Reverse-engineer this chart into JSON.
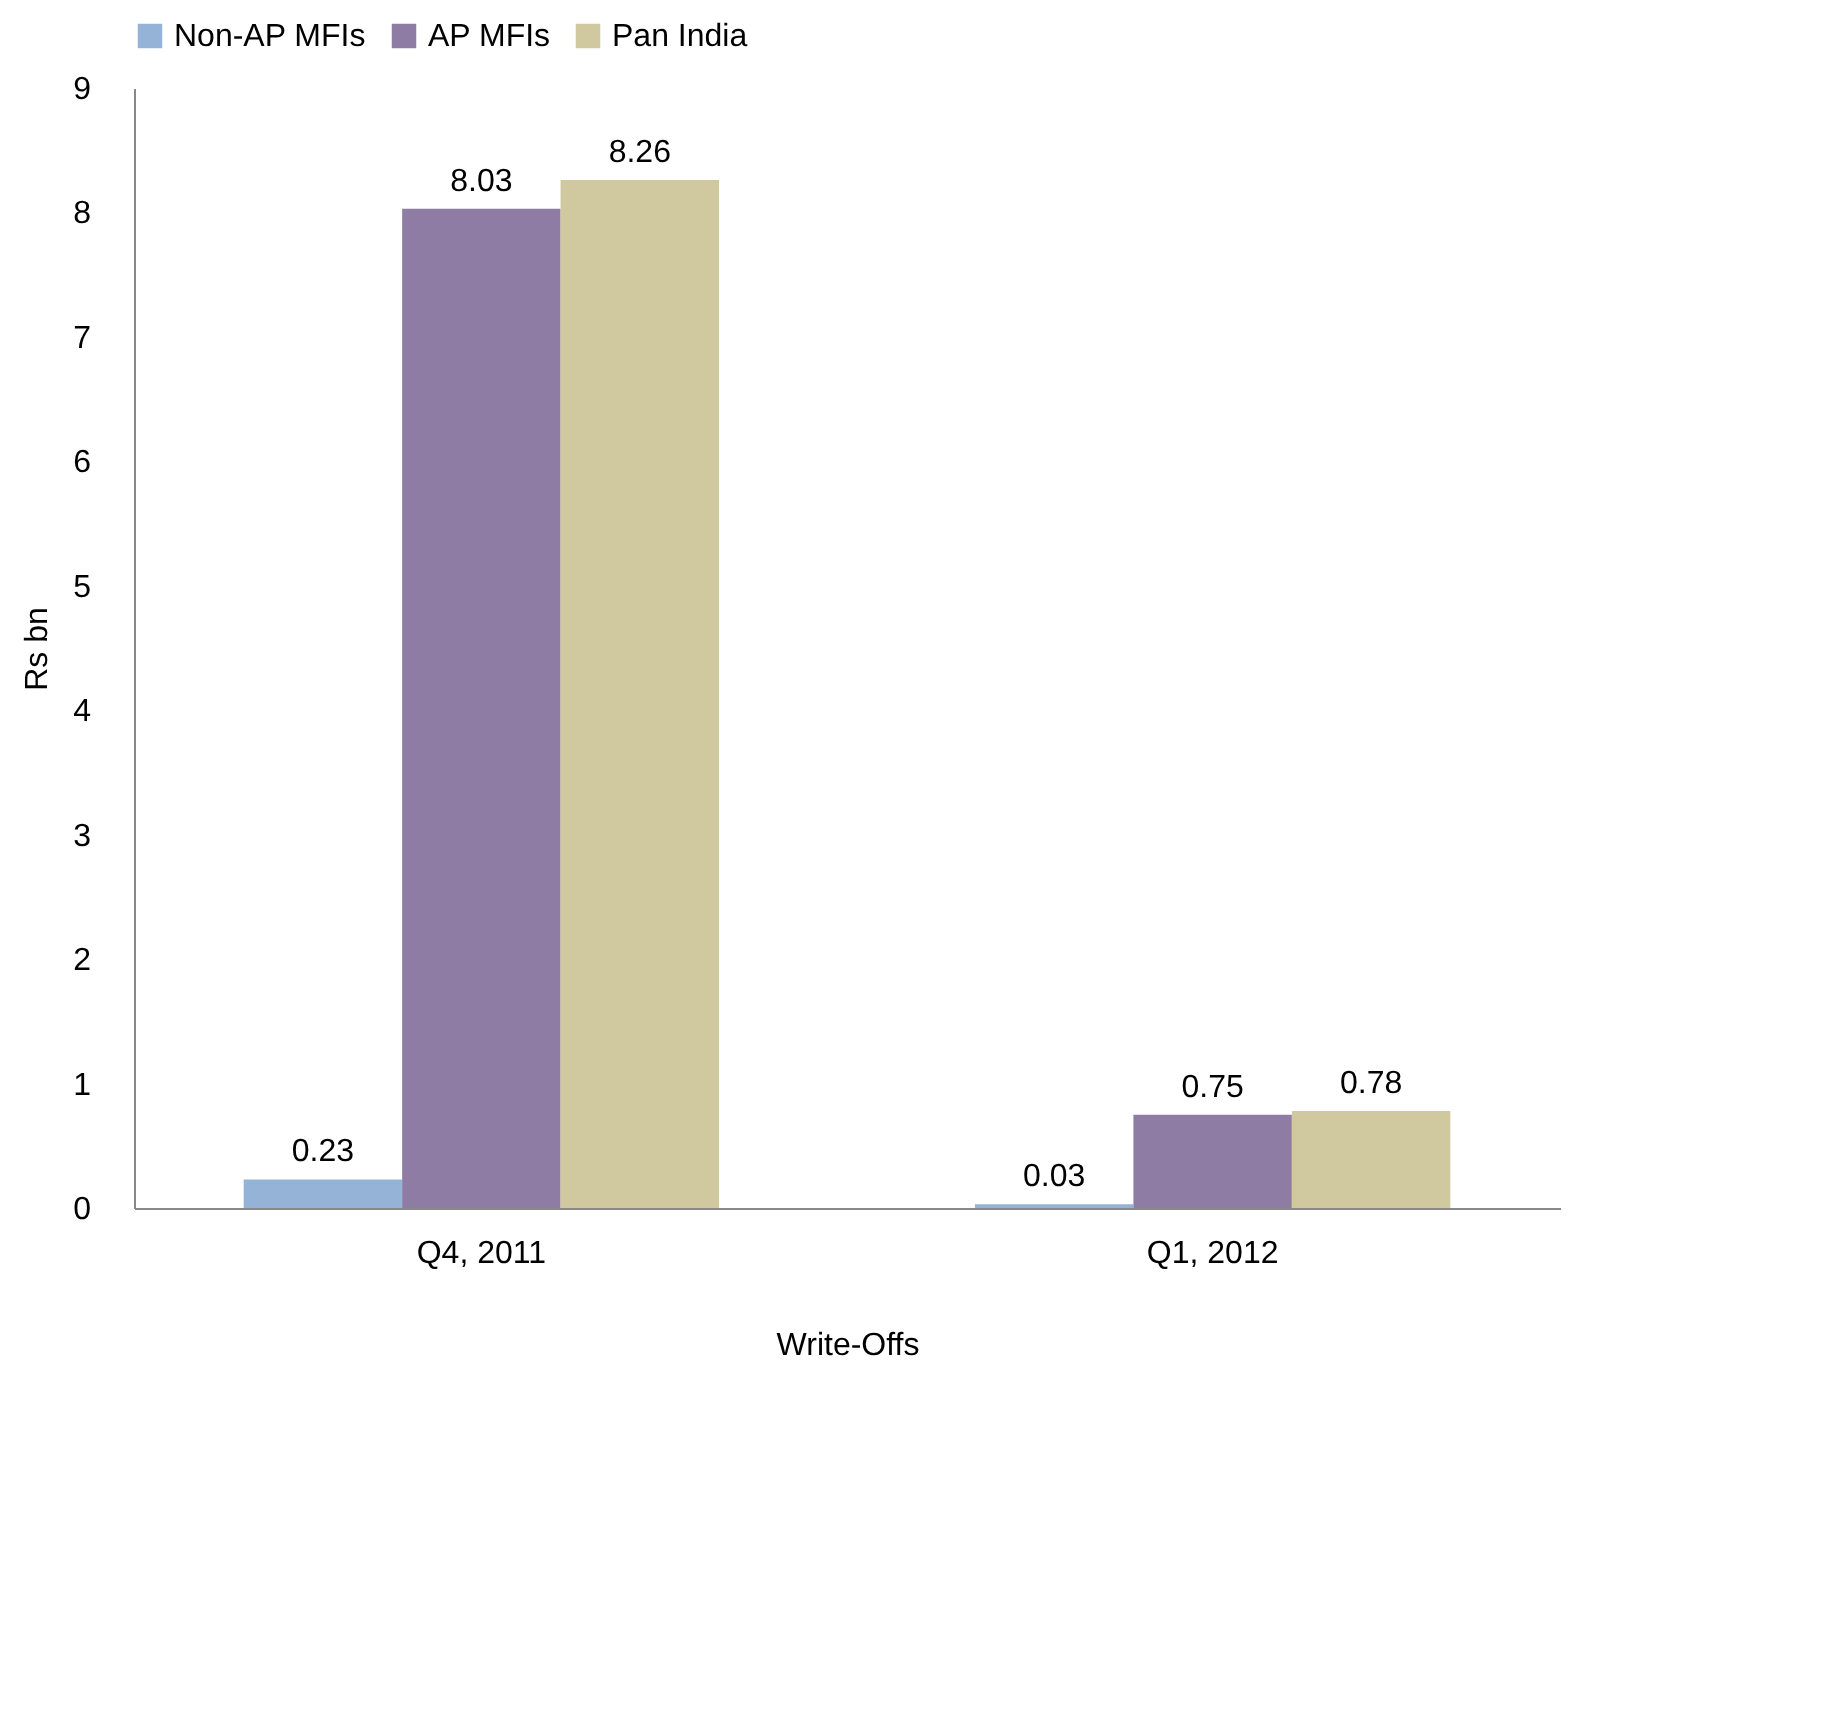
{
  "chart_data": {
    "type": "bar",
    "xlabel": "Write-Offs",
    "ylabel": "Rs bn",
    "categories": [
      "Q4, 2011",
      "Q1, 2012"
    ],
    "series": [
      {
        "name": "Non-AP MFIs",
        "color": "#95b3d7",
        "values": [
          0.23,
          0.03
        ]
      },
      {
        "name": "AP MFIs",
        "color": "#8e7ca5",
        "values": [
          8.03,
          0.75
        ]
      },
      {
        "name": "Pan India",
        "color": "#d0c89e",
        "values": [
          8.26,
          0.78
        ]
      }
    ],
    "ylim": [
      0,
      9
    ],
    "yticks": [
      0,
      1,
      2,
      3,
      4,
      5,
      6,
      7,
      8,
      9
    ],
    "grid": false,
    "legend": "top",
    "data_labels": true
  }
}
